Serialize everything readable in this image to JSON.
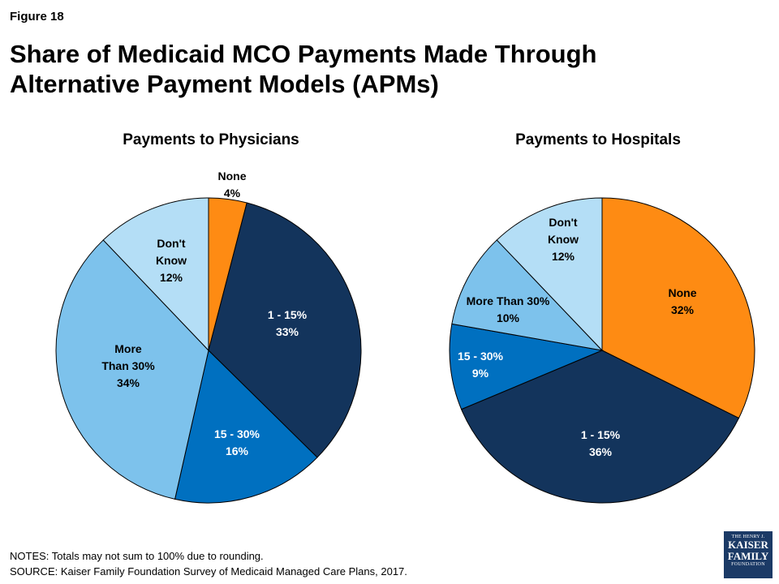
{
  "figure_label": "Figure 18",
  "title": "Share of Medicaid MCO Payments Made Through Alternative Payment Models (APMs)",
  "chart_data": [
    {
      "type": "pie",
      "title": "Payments to Physicians",
      "slices": [
        {
          "label": "None",
          "value": 4,
          "value_label": "4%",
          "color": "#fe8b13"
        },
        {
          "label": "1 - 15%",
          "value": 33,
          "value_label": "33%",
          "color": "#13345c"
        },
        {
          "label": "15 - 30%",
          "value": 16,
          "value_label": "16%",
          "color": "#0070c0"
        },
        {
          "label": "More Than 30%",
          "value": 34,
          "value_label": "34%",
          "color": "#7dc2ec"
        },
        {
          "label": "Don't Know",
          "value": 12,
          "value_label": "12%",
          "color": "#b4def6"
        }
      ]
    },
    {
      "type": "pie",
      "title": "Payments to Hospitals",
      "slices": [
        {
          "label": "None",
          "value": 32,
          "value_label": "32%",
          "color": "#fe8b13"
        },
        {
          "label": "1 - 15%",
          "value": 36,
          "value_label": "36%",
          "color": "#13345c"
        },
        {
          "label": "15 - 30%",
          "value": 9,
          "value_label": "9%",
          "color": "#0070c0"
        },
        {
          "label": "More Than 30%",
          "value": 10,
          "value_label": "10%",
          "color": "#7dc2ec"
        },
        {
          "label": "Don't Know",
          "value": 12,
          "value_label": "12%",
          "color": "#b4def6"
        }
      ]
    }
  ],
  "notes": {
    "line1": "NOTES: Totals may not sum to 100% due to rounding.",
    "line2": "SOURCE: Kaiser Family Foundation Survey of Medicaid Managed Care Plans, 2017."
  },
  "logo": {
    "line1": "THE HENRY J.",
    "line2": "KAISER",
    "line3": "FAMILY",
    "line4": "FOUNDATION"
  }
}
